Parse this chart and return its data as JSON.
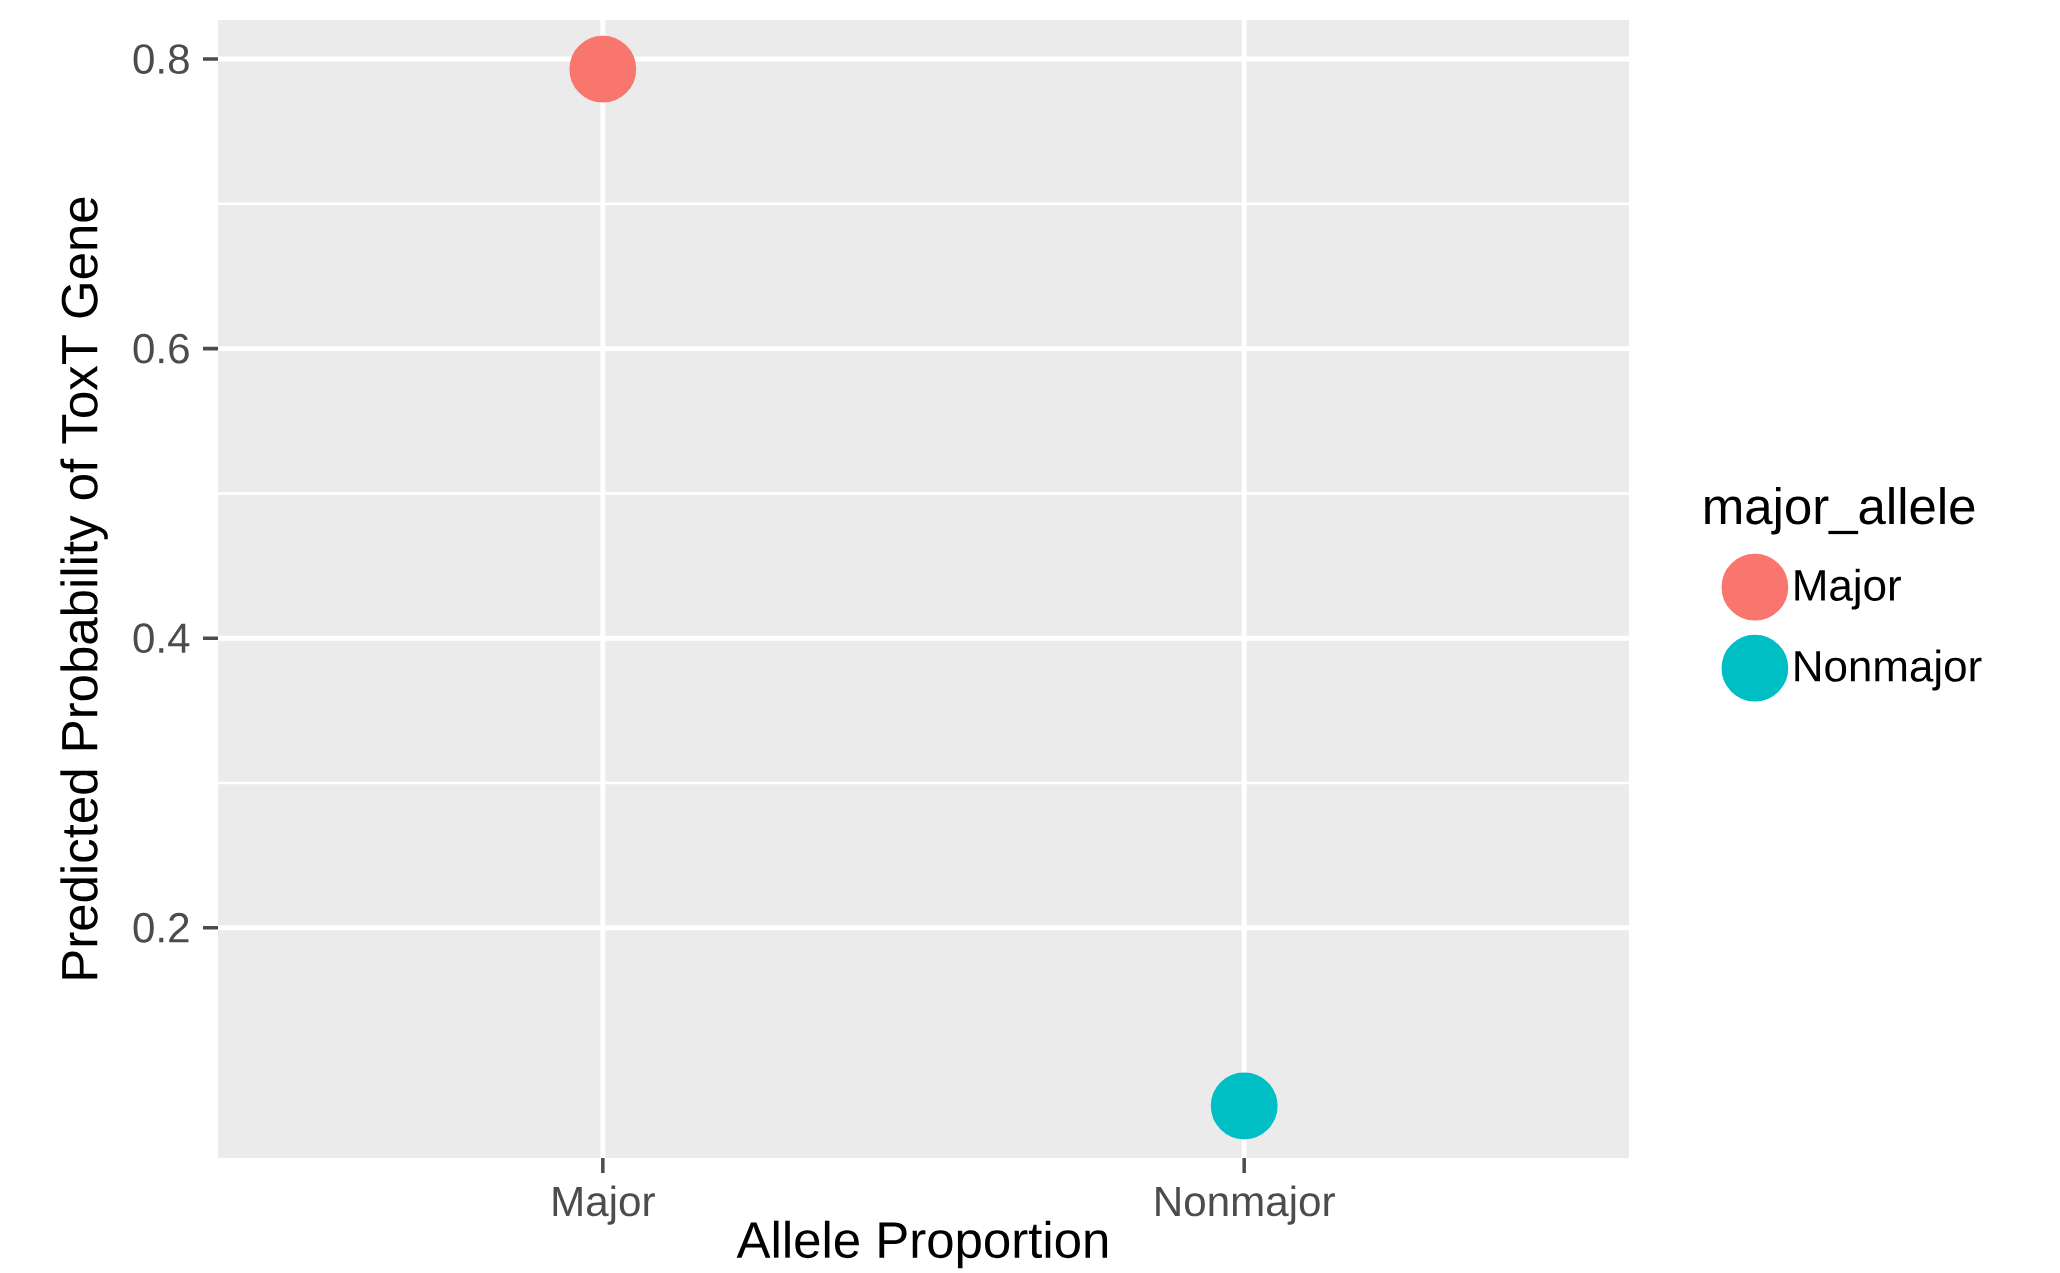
{
  "chart_data": {
    "type": "scatter",
    "xlabel": "Allele Proportion",
    "ylabel": "Predicted Probability of ToxT Gene",
    "legend_title": "major_allele",
    "categories": [
      "Major",
      "Nonmajor"
    ],
    "series": [
      {
        "name": "Major",
        "color": "#f8766d",
        "values": [
          0.793,
          null
        ]
      },
      {
        "name": "Nonmajor",
        "color": "#00bfc4",
        "values": [
          null,
          0.077
        ]
      }
    ],
    "ylim": [
      0.041,
      0.827
    ],
    "yticks": [
      0.2,
      0.4,
      0.6,
      0.8
    ],
    "grid": true,
    "legend": "right"
  }
}
